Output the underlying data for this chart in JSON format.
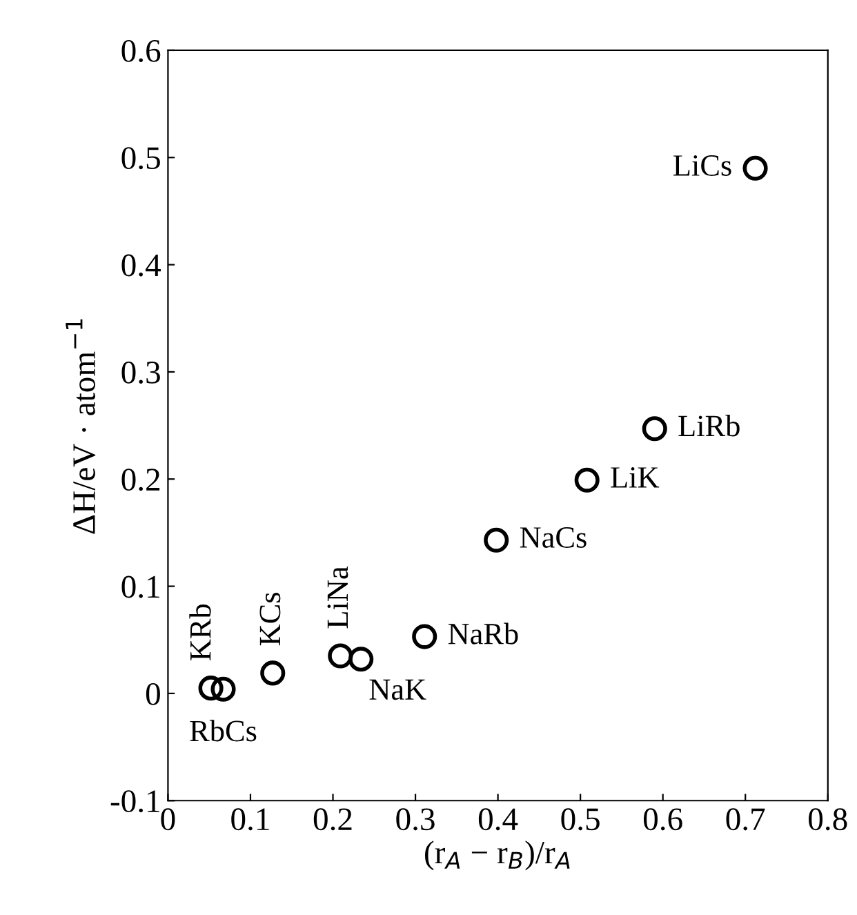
{
  "chart_data": {
    "type": "scatter",
    "xlabel": "(r$_{A}$ − r$_{B}$)/r$_{A}$",
    "ylabel": "ΔH/eV · atom$^{−1}$",
    "x": [
      0.052,
      0.067,
      0.127,
      0.209,
      0.234,
      0.311,
      0.398,
      0.508,
      0.59,
      0.712
    ],
    "series": [
      {
        "color": "#000000",
        "values": [
          0.005,
          0.004,
          0.019,
          0.035,
          0.032,
          0.053,
          0.143,
          0.199,
          0.247,
          0.49
        ]
      }
    ],
    "marker": "circle",
    "xlim": [
      0,
      0.8
    ],
    "ylim": [
      -0.1,
      0.6
    ],
    "xticks": [
      0,
      0.1,
      0.2,
      0.3,
      0.4,
      0.5,
      0.6,
      0.7,
      0.8
    ],
    "yticks": [
      -0.1,
      0,
      0.1,
      0.2,
      0.3,
      0.4,
      0.5,
      0.6
    ],
    "grid": false,
    "annotations": [
      {
        "text": "KRb",
        "x": 0.052,
        "y": 0.005
      },
      {
        "text": "RbCs",
        "x": 0.067,
        "y": 0.004
      },
      {
        "text": "KCs",
        "x": 0.127,
        "y": 0.019
      },
      {
        "text": "LiNa",
        "x": 0.209,
        "y": 0.035
      },
      {
        "text": "NaK",
        "x": 0.234,
        "y": 0.032
      },
      {
        "text": "NaRb",
        "x": 0.311,
        "y": 0.053
      },
      {
        "text": "NaCs",
        "x": 0.398,
        "y": 0.143
      },
      {
        "text": "LiK",
        "x": 0.508,
        "y": 0.199
      },
      {
        "text": "LiRb",
        "x": 0.59,
        "y": 0.247
      },
      {
        "text": "LiCs",
        "x": 0.712,
        "y": 0.49
      }
    ]
  }
}
